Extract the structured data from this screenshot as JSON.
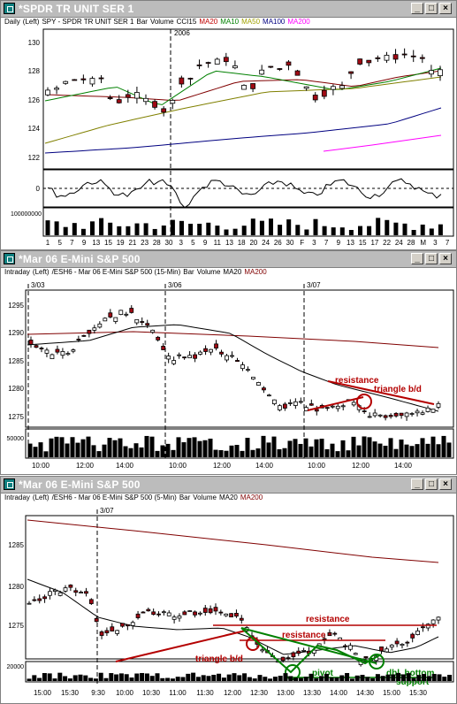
{
  "colors": {
    "up": "#ffffff",
    "down": "#a00a14",
    "ma20": "#800000",
    "ma10": "#008000",
    "ma50": "#808000",
    "ma100": "#000080",
    "ma200": "#ff00ff",
    "annot_red": "#b40000",
    "annot_green": "#008000"
  },
  "windows": [
    {
      "title": "*SPDR TR UNIT SER 1",
      "subheader": [
        {
          "t": "Daily",
          "c": "#000"
        },
        {
          "t": "(Left)",
          "c": "#000"
        },
        {
          "t": "SPY - SPDR TR UNIT SER 1",
          "c": "#000"
        },
        {
          "t": "Bar",
          "c": "#000"
        },
        {
          "t": "Volume",
          "c": "#000"
        },
        {
          "t": "CCI15",
          "c": "#000"
        },
        {
          "t": "MA20",
          "c": "#c00000"
        },
        {
          "t": "MA10",
          "c": "#008000"
        },
        {
          "t": "MA50",
          "c": "#a0a000"
        },
        {
          "t": "MA100",
          "c": "#000080"
        },
        {
          "t": "MA200",
          "c": "#ff00ff"
        }
      ],
      "year_label": "2006",
      "y_ticks": [
        "130",
        "128",
        "126",
        "124",
        "122"
      ],
      "cci_tick": "0",
      "vol_tick": "100000000",
      "x_ticks": [
        "1",
        "5",
        "7",
        "9",
        "13",
        "15",
        "19",
        "21",
        "23",
        "28",
        "30",
        "3",
        "5",
        "9",
        "11",
        "13",
        "18",
        "20",
        "24",
        "26",
        "30",
        "F",
        "3",
        "7",
        "9",
        "13",
        "15",
        "17",
        "22",
        "24",
        "28",
        "M",
        "3",
        "7"
      ]
    },
    {
      "title": "*Mar 06  E-Mini S&P 500",
      "subheader": [
        {
          "t": "Intraday",
          "c": "#000"
        },
        {
          "t": "(Left)",
          "c": "#000"
        },
        {
          "t": "/ESH6 - Mar 06  E-Mini S&P 500  (15-Min)",
          "c": "#000"
        },
        {
          "t": "Bar",
          "c": "#000"
        },
        {
          "t": "Volume",
          "c": "#000"
        },
        {
          "t": "MA20",
          "c": "#000"
        },
        {
          "t": "MA200",
          "c": "#800000"
        }
      ],
      "date_labels": [
        "3/03",
        "3/06",
        "3/07"
      ],
      "y_ticks": [
        "1295",
        "1290",
        "1285",
        "1280",
        "1275"
      ],
      "vol_tick": "50000",
      "x_ticks": [
        "10:00",
        "12:00",
        "14:00",
        "10:00",
        "12:00",
        "14:00",
        "10:00",
        "12:00",
        "14:00"
      ],
      "annotations": [
        "resistance",
        "triangle b/d"
      ]
    },
    {
      "title": "*Mar 06  E-Mini S&P 500",
      "subheader": [
        {
          "t": "Intraday",
          "c": "#000"
        },
        {
          "t": "(Left)",
          "c": "#000"
        },
        {
          "t": "/ESH6 - Mar 06  E-Mini S&P 500  (5-Min)",
          "c": "#000"
        },
        {
          "t": "Bar",
          "c": "#000"
        },
        {
          "t": "Volume",
          "c": "#000"
        },
        {
          "t": "MA20",
          "c": "#000"
        },
        {
          "t": "MA200",
          "c": "#800000"
        }
      ],
      "date_labels": [
        "3/07"
      ],
      "y_ticks": [
        "1285",
        "1280",
        "1275"
      ],
      "vol_tick": "20000",
      "x_ticks": [
        "15:00",
        "15:30",
        "9:30",
        "10:00",
        "10:30",
        "11:00",
        "11:30",
        "12:00",
        "12:30",
        "13:00",
        "13:30",
        "14:00",
        "14:30",
        "15:00",
        "15:30"
      ],
      "annotations": [
        "resistance",
        "resistance",
        "triangle b/d",
        "pivot",
        "dbl. bottom",
        "support"
      ]
    }
  ]
}
